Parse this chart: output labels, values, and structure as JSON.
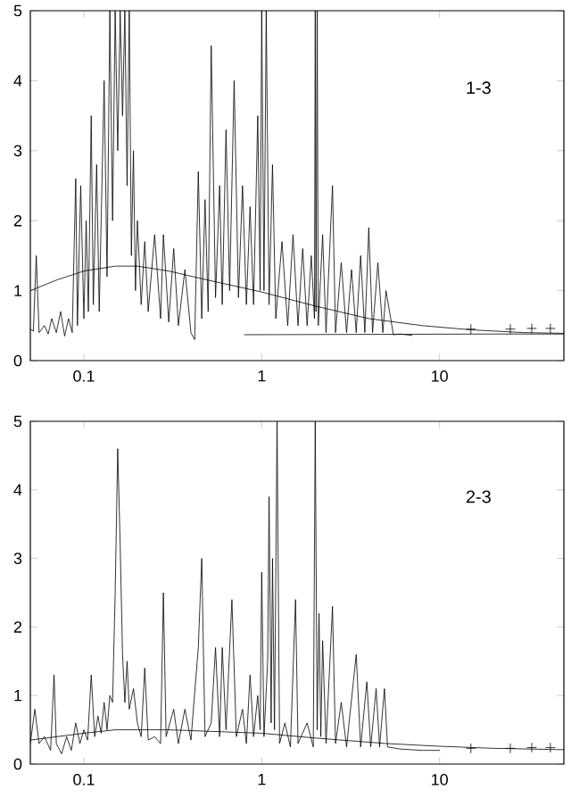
{
  "chart_data": [
    {
      "type": "line",
      "log": "x",
      "xlim": [
        0.05,
        50
      ],
      "ylim": [
        0,
        5
      ],
      "xticks": [
        0.1,
        1,
        10
      ],
      "yticks": [
        0,
        1,
        2,
        3,
        4,
        5
      ],
      "annotations": [
        "1-3"
      ],
      "series": [
        {
          "color": "#000000",
          "x": [
            0.05,
            0.052,
            0.054,
            0.056,
            0.06,
            0.063,
            0.066,
            0.07,
            0.074,
            0.078,
            0.082,
            0.086,
            0.09,
            0.092,
            0.096,
            0.1,
            0.103,
            0.106,
            0.11,
            0.113,
            0.118,
            0.122,
            0.13,
            0.135,
            0.14,
            0.145,
            0.15,
            0.155,
            0.16,
            0.165,
            0.17,
            0.175,
            0.18,
            0.185,
            0.19,
            0.195,
            0.2,
            0.21,
            0.22,
            0.23,
            0.25,
            0.27,
            0.28,
            0.3,
            0.32,
            0.34,
            0.37,
            0.4,
            0.42,
            0.44,
            0.46,
            0.48,
            0.5,
            0.52,
            0.55,
            0.58,
            0.6,
            0.63,
            0.66,
            0.7,
            0.74,
            0.78,
            0.82,
            0.86,
            0.9,
            0.95,
            0.98,
            1.0,
            1.03,
            1.06,
            1.1,
            1.15,
            1.2,
            1.3,
            1.4,
            1.5,
            1.6,
            1.7,
            1.8,
            1.9,
            1.98,
            2.0,
            2.02,
            2.05,
            2.08,
            2.2,
            2.3,
            2.5,
            2.6,
            2.8,
            3.0,
            3.2,
            3.4,
            3.6,
            3.8,
            4.0,
            4.2,
            4.5,
            4.8,
            5.0,
            5.5,
            6,
            7
          ],
          "values": [
            0.45,
            0.42,
            1.5,
            0.4,
            0.5,
            0.38,
            0.6,
            0.4,
            0.7,
            0.35,
            0.6,
            0.4,
            2.6,
            0.5,
            2.5,
            0.6,
            2.0,
            0.7,
            3.5,
            0.8,
            2.8,
            0.7,
            4.0,
            1.2,
            5,
            2.0,
            5,
            3.0,
            5,
            3.5,
            5,
            2.5,
            5,
            1.5,
            3.0,
            1.0,
            2.0,
            0.8,
            1.7,
            0.7,
            1.8,
            0.6,
            1.8,
            0.55,
            1.6,
            0.5,
            1.3,
            0.4,
            0.3,
            2.7,
            0.6,
            2.3,
            0.7,
            4.5,
            0.9,
            2.5,
            0.8,
            3.3,
            1.0,
            4.0,
            0.9,
            2.5,
            0.8,
            2.2,
            0.8,
            3.5,
            1.0,
            5,
            1.0,
            5,
            0.8,
            2.8,
            0.6,
            1.7,
            0.5,
            1.8,
            0.5,
            1.6,
            0.5,
            1.5,
            0.6,
            5,
            0.7,
            5,
            0.5,
            1.8,
            0.4,
            2.5,
            0.4,
            1.4,
            0.4,
            1.3,
            0.4,
            1.5,
            0.4,
            1.9,
            0.4,
            1.4,
            0.4,
            1.0,
            0.37,
            0.38,
            0.36
          ]
        },
        {
          "color": "#000000",
          "x": [
            0.05,
            0.07,
            0.1,
            0.15,
            0.2,
            0.3,
            0.5,
            1,
            2,
            4,
            8,
            15,
            30,
            50
          ],
          "values": [
            1.0,
            1.15,
            1.28,
            1.35,
            1.35,
            1.28,
            1.15,
            0.98,
            0.78,
            0.6,
            0.5,
            0.44,
            0.4,
            0.39
          ]
        },
        {
          "color": "#000000",
          "x": [
            0.8,
            20,
            50
          ],
          "values": [
            0.37,
            0.38,
            0.38
          ]
        },
        {
          "type": "scatter",
          "marker": "cross",
          "color": "#000000",
          "x": [
            15,
            25,
            33,
            42
          ],
          "values": [
            0.45,
            0.45,
            0.46,
            0.46
          ]
        }
      ]
    },
    {
      "type": "line",
      "log": "x",
      "xlim": [
        0.05,
        50
      ],
      "ylim": [
        0,
        5
      ],
      "xticks": [
        0.1,
        1,
        10
      ],
      "yticks": [
        0,
        1,
        2,
        3,
        4,
        5
      ],
      "annotations": [
        "2-3"
      ],
      "series": [
        {
          "color": "#000000",
          "x": [
            0.05,
            0.053,
            0.056,
            0.06,
            0.065,
            0.068,
            0.07,
            0.075,
            0.08,
            0.085,
            0.09,
            0.095,
            0.1,
            0.105,
            0.11,
            0.115,
            0.12,
            0.125,
            0.13,
            0.135,
            0.14,
            0.145,
            0.15,
            0.155,
            0.16,
            0.165,
            0.17,
            0.175,
            0.18,
            0.19,
            0.2,
            0.21,
            0.22,
            0.23,
            0.25,
            0.27,
            0.28,
            0.29,
            0.32,
            0.34,
            0.37,
            0.4,
            0.44,
            0.46,
            0.48,
            0.52,
            0.55,
            0.58,
            0.6,
            0.63,
            0.68,
            0.72,
            0.78,
            0.82,
            0.86,
            0.9,
            0.95,
            0.98,
            1.0,
            1.03,
            1.08,
            1.1,
            1.13,
            1.15,
            1.18,
            1.22,
            1.26,
            1.35,
            1.45,
            1.55,
            1.6,
            1.8,
            1.95,
            2.0,
            2.05,
            2.1,
            2.15,
            2.2,
            2.3,
            2.5,
            2.6,
            2.8,
            3.0,
            3.4,
            3.6,
            3.9,
            4.1,
            4.4,
            4.6,
            4.9,
            5.1,
            6,
            8,
            10
          ],
          "values": [
            0.3,
            0.8,
            0.3,
            0.4,
            0.2,
            1.3,
            0.3,
            0.15,
            0.4,
            0.2,
            0.6,
            0.3,
            0.5,
            0.35,
            1.3,
            0.4,
            0.7,
            0.45,
            0.9,
            0.5,
            1.0,
            0.9,
            2.5,
            4.6,
            3.2,
            1.6,
            0.9,
            1.5,
            0.8,
            1.1,
            0.6,
            0.4,
            1.4,
            0.35,
            0.4,
            0.3,
            2.5,
            0.4,
            0.8,
            0.3,
            0.8,
            0.35,
            1.7,
            3.0,
            0.4,
            0.6,
            1.7,
            0.4,
            1.7,
            0.5,
            2.4,
            0.4,
            0.8,
            0.3,
            1.3,
            0.4,
            1.0,
            0.5,
            2.8,
            0.4,
            1.5,
            3.9,
            0.6,
            3.0,
            0.5,
            5,
            0.3,
            0.6,
            0.25,
            2.4,
            0.3,
            0.6,
            0.25,
            5,
            0.5,
            2.2,
            0.4,
            1.8,
            0.3,
            2.3,
            0.3,
            0.9,
            0.25,
            1.6,
            0.25,
            1.2,
            0.25,
            1.1,
            0.25,
            1.1,
            0.25,
            0.22,
            0.2,
            0.2
          ]
        },
        {
          "color": "#000000",
          "x": [
            0.05,
            0.1,
            0.15,
            0.3,
            1,
            2,
            5,
            10,
            20,
            50
          ],
          "values": [
            0.35,
            0.45,
            0.5,
            0.5,
            0.45,
            0.38,
            0.3,
            0.26,
            0.23,
            0.21
          ]
        },
        {
          "type": "scatter",
          "marker": "cross",
          "color": "#000000",
          "x": [
            15,
            25,
            33,
            42
          ],
          "values": [
            0.23,
            0.23,
            0.24,
            0.24
          ]
        }
      ]
    }
  ]
}
